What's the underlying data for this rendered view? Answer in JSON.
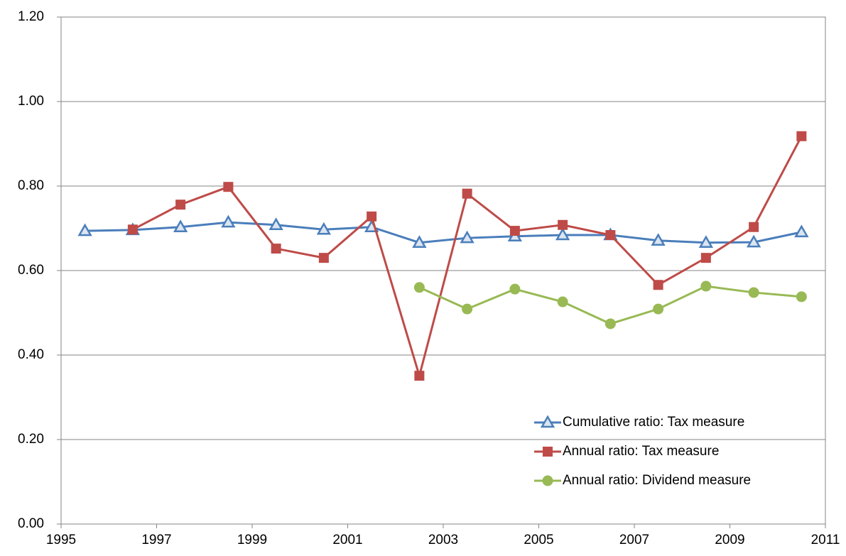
{
  "chart_data": {
    "type": "line",
    "x": [
      1995.5,
      1996.5,
      1997.5,
      1998.5,
      1999.5,
      2000.5,
      2001.5,
      2002.5,
      2003.5,
      2004.5,
      2005.5,
      2006.5,
      2007.5,
      2008.5,
      2009.5,
      2010.5
    ],
    "series": [
      {
        "name": "Cumulative ratio: Tax measure",
        "color": "#4a7ebb",
        "marker": "triangle",
        "values": [
          0.694,
          0.696,
          0.703,
          0.714,
          0.708,
          0.697,
          0.703,
          0.666,
          0.677,
          0.681,
          0.684,
          0.684,
          0.671,
          0.666,
          0.667,
          0.691
        ]
      },
      {
        "name": "Annual ratio: Tax measure",
        "color": "#be4b48",
        "marker": "square",
        "values": [
          null,
          0.697,
          0.756,
          0.798,
          0.652,
          0.63,
          0.728,
          0.351,
          0.782,
          0.694,
          0.708,
          0.684,
          0.566,
          0.63,
          0.703,
          0.918
        ]
      },
      {
        "name": "Annual ratio: Dividend measure",
        "color": "#98b954",
        "marker": "circle",
        "values": [
          null,
          null,
          null,
          null,
          null,
          null,
          null,
          0.56,
          0.509,
          0.556,
          0.526,
          0.474,
          0.509,
          0.563,
          0.548,
          0.538
        ]
      }
    ],
    "xlim": [
      1995,
      2011
    ],
    "xticks": [
      1995,
      1997,
      1999,
      2001,
      2003,
      2005,
      2007,
      2009,
      2011
    ],
    "ylim": [
      0,
      1.2
    ],
    "yticks": [
      {
        "value": 0,
        "label": "0.00"
      },
      {
        "value": 0.2,
        "label": "0.20"
      },
      {
        "value": 0.4,
        "label": "0.40"
      },
      {
        "value": 0.6,
        "label": "0.60"
      },
      {
        "value": 0.8,
        "label": "0.80"
      },
      {
        "value": 1.0,
        "label": "1.00"
      },
      {
        "value": 1.2,
        "label": "1.20"
      }
    ],
    "grid": true,
    "legend": "lower right"
  }
}
